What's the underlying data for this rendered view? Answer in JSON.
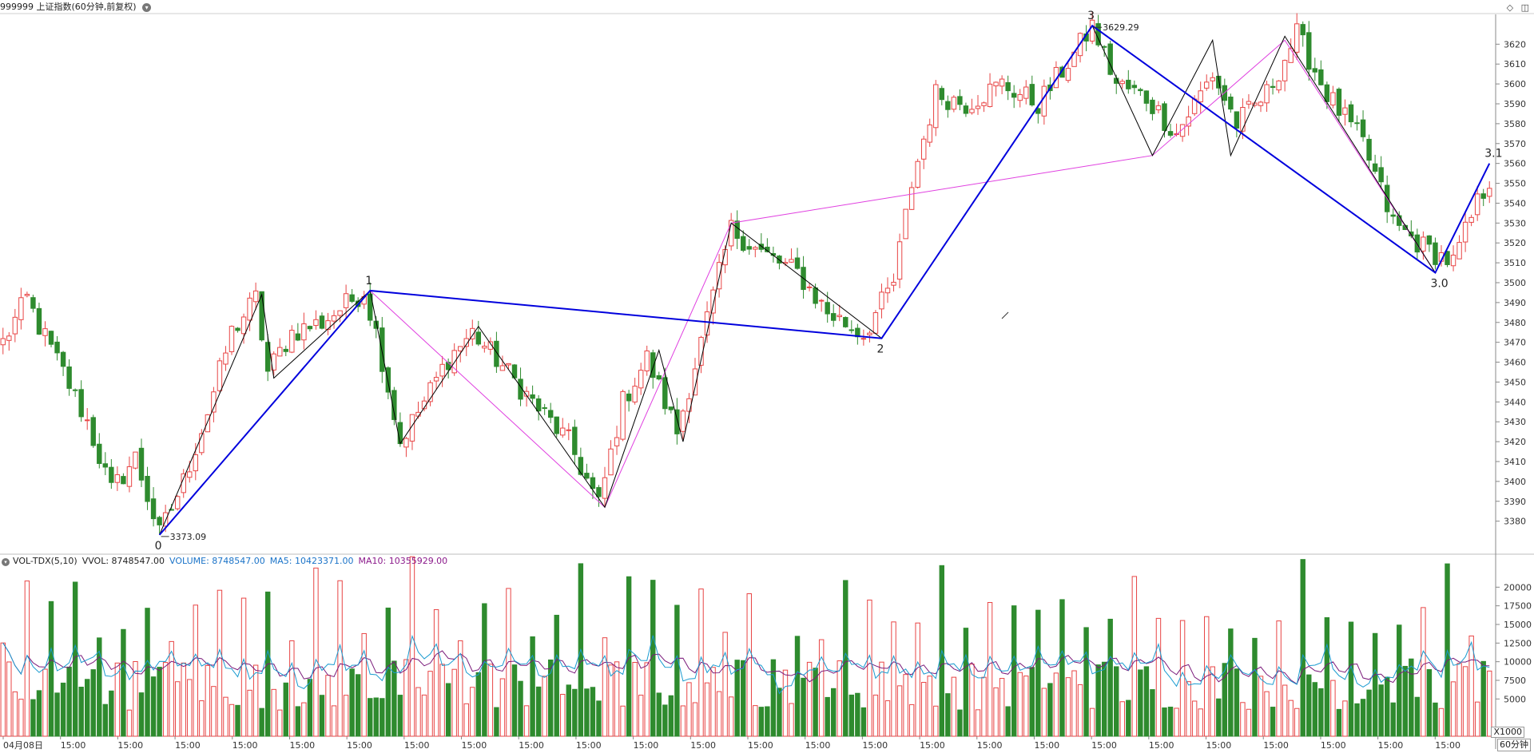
{
  "header": {
    "title": "999999 上证指数(60分钟,前复权)",
    "dropdown_icon": "chevron-down-icon"
  },
  "top_right_icons": [
    "diamond-icon",
    "panel-toggle-icon"
  ],
  "volume_header": {
    "name": "VOL-TDX(5,10)",
    "vvol": "VVOL: 8748547.00",
    "volume": "VOLUME: 8748547.00",
    "ma5": "MA5: 10423371.00",
    "ma10": "MA10: 10355929.00",
    "volume_color": "#1a73c8",
    "ma5_color": "#1a73c8",
    "ma10_color": "#8b1a8b"
  },
  "x1000_label": "X1000",
  "period_label": "60分钟",
  "colors": {
    "up": "#e84545",
    "down": "#2e8b2e",
    "wave_major": "#0000dd",
    "wave_minor": "#000000",
    "wave_alt": "#e040e0",
    "ma5": "#1a9bd0",
    "ma10": "#7a1a7a",
    "grid": "#e6e6e6",
    "axis": "#888888"
  },
  "chart_data": [
    {
      "type": "candlestick",
      "ylim": [
        3365,
        3635
      ],
      "yticks": [
        3380,
        3390,
        3400,
        3410,
        3420,
        3430,
        3440,
        3450,
        3460,
        3470,
        3480,
        3490,
        3500,
        3510,
        3520,
        3530,
        3540,
        3550,
        3560,
        3570,
        3580,
        3590,
        3600,
        3610,
        3620
      ],
      "xticks": [
        "04月08日",
        "15:00",
        "15:00",
        "15:00",
        "15:00",
        "15:00",
        "15:00",
        "15:00",
        "15:00",
        "15:00",
        "15:00",
        "15:00",
        "15:00",
        "15:00",
        "15:00",
        "15:00",
        "15:00",
        "15:00",
        "15:00",
        "15:00",
        "15:00",
        "15:00",
        "15:00",
        "15:00",
        "15:00",
        "15:00"
      ],
      "candle_count": 248,
      "price_path": [
        [
          0,
          3470
        ],
        [
          4,
          3492
        ],
        [
          6,
          3478
        ],
        [
          10,
          3455
        ],
        [
          14,
          3430
        ],
        [
          18,
          3395
        ],
        [
          22,
          3412
        ],
        [
          26,
          3373.09
        ],
        [
          30,
          3400
        ],
        [
          34,
          3435
        ],
        [
          38,
          3475
        ],
        [
          42,
          3492
        ],
        [
          44,
          3455
        ],
        [
          48,
          3475
        ],
        [
          53,
          3480
        ],
        [
          60,
          3496
        ],
        [
          62,
          3475
        ],
        [
          66,
          3420
        ],
        [
          70,
          3440
        ],
        [
          74,
          3462
        ],
        [
          78,
          3475
        ],
        [
          83,
          3458
        ],
        [
          88,
          3440
        ],
        [
          94,
          3420
        ],
        [
          99,
          3388
        ],
        [
          103,
          3440
        ],
        [
          107,
          3462
        ],
        [
          112,
          3425
        ],
        [
          116,
          3470
        ],
        [
          121,
          3527
        ],
        [
          126,
          3515
        ],
        [
          132,
          3505
        ],
        [
          137,
          3485
        ],
        [
          143,
          3474
        ],
        [
          148,
          3500
        ],
        [
          151,
          3550
        ],
        [
          155,
          3595
        ],
        [
          160,
          3590
        ],
        [
          166,
          3600
        ],
        [
          172,
          3590
        ],
        [
          178,
          3615
        ],
        [
          181,
          3629.29
        ],
        [
          185,
          3600
        ],
        [
          190,
          3593
        ],
        [
          195,
          3575
        ],
        [
          201,
          3605
        ],
        [
          205,
          3580
        ],
        [
          210,
          3595
        ],
        [
          215,
          3625
        ],
        [
          220,
          3595
        ],
        [
          226,
          3570
        ],
        [
          231,
          3530
        ],
        [
          236,
          3518
        ],
        [
          241,
          3510
        ],
        [
          243,
          3525
        ],
        [
          245,
          3540
        ],
        [
          247,
          3552
        ]
      ],
      "wave_points_major": [
        {
          "i": 26,
          "v": 3373.09,
          "label": "0"
        },
        {
          "i": 61,
          "v": 3496,
          "label": "1"
        },
        {
          "i": 146,
          "v": 3472,
          "label": "2"
        },
        {
          "i": 181,
          "v": 3629.29,
          "label": "3"
        },
        {
          "i": 238,
          "v": 3505,
          "label": "3.0"
        },
        {
          "i": 247,
          "v": 3560,
          "label": "3.1"
        }
      ],
      "wave_points_minor": [
        [
          26,
          3373.09
        ],
        [
          43,
          3494
        ],
        [
          45,
          3452
        ],
        [
          61,
          3496
        ],
        [
          66,
          3419
        ],
        [
          79,
          3478
        ],
        [
          100,
          3387
        ],
        [
          109,
          3466
        ],
        [
          113,
          3420
        ],
        [
          121,
          3530
        ],
        [
          146,
          3472
        ],
        [
          181,
          3629.29
        ],
        [
          191,
          3564
        ],
        [
          201,
          3622
        ],
        [
          204,
          3564
        ],
        [
          213,
          3624
        ],
        [
          238,
          3505
        ]
      ],
      "wave_points_alt": [
        [
          61,
          3496
        ],
        [
          100,
          3387
        ],
        [
          121,
          3530
        ],
        [
          191,
          3564
        ],
        [
          213,
          3622
        ],
        [
          238,
          3505
        ]
      ],
      "price_labels": [
        {
          "text": "3373.09",
          "i": 26,
          "v": 3373.09
        },
        {
          "text": "3629.29",
          "i": 181,
          "v": 3629.29
        }
      ]
    },
    {
      "type": "bar",
      "title": "VOL-TDX(5,10)",
      "ylim": [
        0,
        22500
      ],
      "yticks": [
        5000,
        7500,
        10000,
        12500,
        15000,
        17500,
        20000
      ],
      "unit": "X1000",
      "last_volume": 8748.547,
      "series": [
        {
          "name": "VOLUME",
          "value": 8748547.0
        },
        {
          "name": "MA5",
          "value": 10423371.0
        },
        {
          "name": "MA10",
          "value": 10355929.0
        }
      ]
    }
  ]
}
